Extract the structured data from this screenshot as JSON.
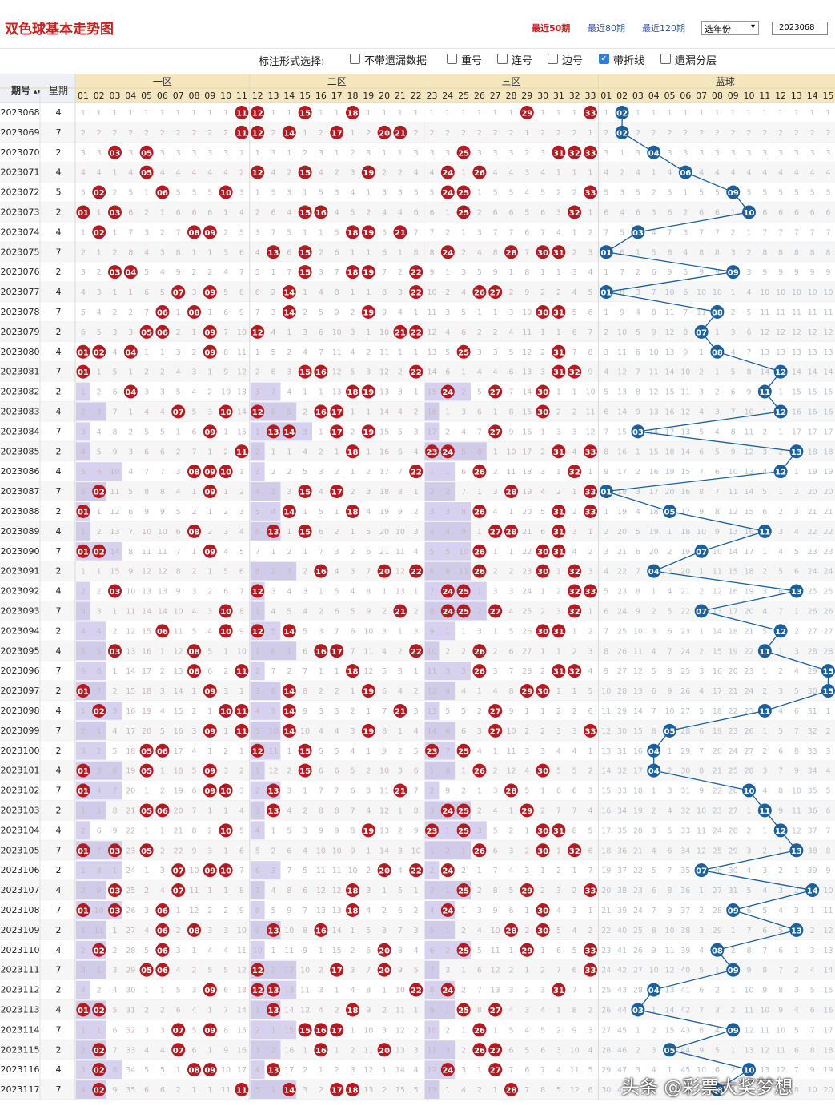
{
  "header": {
    "title": "双色球基本走势图",
    "period_links": [
      {
        "label": "最近50期",
        "active": true
      },
      {
        "label": "最近80期",
        "active": false
      },
      {
        "label": "最近120期",
        "active": false
      }
    ],
    "year_select": "选年份",
    "issue_input": "2023068"
  },
  "options": {
    "label": "标注形式选择:",
    "items": [
      {
        "label": "不带遗漏数据",
        "checked": false
      },
      {
        "label": "重号",
        "checked": false
      },
      {
        "label": "连号",
        "checked": false
      },
      {
        "label": "边号",
        "checked": false
      },
      {
        "label": "带折线",
        "checked": true
      },
      {
        "label": "遗漏分层",
        "checked": false
      }
    ]
  },
  "table": {
    "col_issue": "期号",
    "col_week": "星期",
    "zones": [
      "一区",
      "二区",
      "三区",
      "蓝球"
    ],
    "red_numbers": [
      "01",
      "02",
      "03",
      "04",
      "05",
      "06",
      "07",
      "08",
      "09",
      "10",
      "11",
      "12",
      "13",
      "14",
      "15",
      "16",
      "17",
      "18",
      "19",
      "20",
      "21",
      "22",
      "23",
      "24",
      "25",
      "26",
      "27",
      "28",
      "29",
      "30",
      "31",
      "32",
      "33"
    ],
    "blue_numbers": [
      "01",
      "02",
      "03",
      "04",
      "05",
      "06",
      "07",
      "08",
      "09",
      "10",
      "11",
      "12",
      "13",
      "14",
      "15"
    ],
    "colors": {
      "red_ball": "#b51a21",
      "blue_ball": "#1b5f9c",
      "header_bg": "#f4e7c0",
      "bar": "#8b7ad3"
    },
    "draws": [
      {
        "issue": "2023068",
        "week": "4",
        "red": [
          11,
          12,
          15,
          18,
          29,
          33
        ],
        "blue": 2
      },
      {
        "issue": "2023069",
        "week": "7",
        "red": [
          11,
          12,
          14,
          17,
          20,
          21
        ],
        "blue": 2
      },
      {
        "issue": "2023070",
        "week": "2",
        "red": [
          3,
          5,
          25,
          31,
          32,
          33
        ],
        "blue": 4
      },
      {
        "issue": "2023071",
        "week": "4",
        "red": [
          5,
          12,
          15,
          19,
          24,
          26
        ],
        "blue": 6
      },
      {
        "issue": "2023072",
        "week": "5",
        "red": [
          2,
          6,
          10,
          24,
          25,
          33
        ],
        "blue": 9
      },
      {
        "issue": "2023073",
        "week": "2",
        "red": [
          1,
          3,
          15,
          16,
          25,
          32
        ],
        "blue": 10
      },
      {
        "issue": "2023074",
        "week": "4",
        "red": [
          2,
          8,
          9,
          18,
          19,
          21
        ],
        "blue": 3
      },
      {
        "issue": "2023075",
        "week": "7",
        "red": [
          13,
          15,
          24,
          28,
          30,
          31
        ],
        "blue": 1
      },
      {
        "issue": "2023076",
        "week": "2",
        "red": [
          3,
          4,
          15,
          18,
          19,
          22
        ],
        "blue": 9
      },
      {
        "issue": "2023077",
        "week": "4",
        "red": [
          7,
          9,
          14,
          22,
          26,
          27
        ],
        "blue": 1
      },
      {
        "issue": "2023078",
        "week": "7",
        "red": [
          6,
          8,
          14,
          19,
          30,
          31
        ],
        "blue": 8
      },
      {
        "issue": "2023079",
        "week": "2",
        "red": [
          5,
          6,
          9,
          12,
          21,
          22
        ],
        "blue": 7
      },
      {
        "issue": "2023080",
        "week": "4",
        "red": [
          1,
          2,
          4,
          9,
          25,
          31
        ],
        "blue": 8
      },
      {
        "issue": "2023081",
        "week": "7",
        "red": [
          1,
          15,
          16,
          22,
          31,
          32
        ],
        "blue": 12
      },
      {
        "issue": "2023082",
        "week": "2",
        "red": [
          4,
          18,
          19,
          24,
          27,
          30
        ],
        "blue": 11
      },
      {
        "issue": "2023083",
        "week": "4",
        "red": [
          7,
          10,
          12,
          16,
          17,
          30
        ],
        "blue": 12
      },
      {
        "issue": "2023084",
        "week": "7",
        "red": [
          9,
          13,
          14,
          17,
          19,
          27
        ],
        "blue": 3
      },
      {
        "issue": "2023085",
        "week": "2",
        "red": [
          11,
          18,
          23,
          24,
          31,
          33
        ],
        "blue": 13
      },
      {
        "issue": "2023086",
        "week": "4",
        "red": [
          8,
          9,
          10,
          22,
          26,
          32
        ],
        "blue": 12
      },
      {
        "issue": "2023087",
        "week": "7",
        "red": [
          2,
          9,
          15,
          17,
          28,
          33
        ],
        "blue": 1
      },
      {
        "issue": "2023088",
        "week": "2",
        "red": [
          1,
          14,
          18,
          26,
          31,
          33
        ],
        "blue": 5
      },
      {
        "issue": "2023089",
        "week": "4",
        "red": [
          8,
          13,
          15,
          27,
          28,
          31
        ],
        "blue": 11
      },
      {
        "issue": "2023090",
        "week": "7",
        "red": [
          1,
          2,
          9,
          26,
          30,
          31
        ],
        "blue": 7
      },
      {
        "issue": "2023091",
        "week": "2",
        "red": [
          16,
          20,
          22,
          26,
          30,
          32
        ],
        "blue": 4
      },
      {
        "issue": "2023092",
        "week": "4",
        "red": [
          3,
          12,
          24,
          25,
          32,
          33
        ],
        "blue": 13
      },
      {
        "issue": "2023093",
        "week": "7",
        "red": [
          10,
          21,
          24,
          25,
          27,
          32
        ],
        "blue": 7
      },
      {
        "issue": "2023094",
        "week": "2",
        "red": [
          6,
          10,
          12,
          14,
          30,
          31
        ],
        "blue": 12
      },
      {
        "issue": "2023095",
        "week": "4",
        "red": [
          3,
          8,
          16,
          17,
          22,
          26
        ],
        "blue": 11
      },
      {
        "issue": "2023096",
        "week": "7",
        "red": [
          8,
          11,
          18,
          26,
          31,
          32
        ],
        "blue": 15
      },
      {
        "issue": "2023097",
        "week": "2",
        "red": [
          1,
          9,
          14,
          19,
          29,
          30
        ],
        "blue": 15
      },
      {
        "issue": "2023098",
        "week": "4",
        "red": [
          2,
          10,
          11,
          14,
          21,
          27
        ],
        "blue": 11
      },
      {
        "issue": "2023099",
        "week": "7",
        "red": [
          9,
          11,
          14,
          19,
          27,
          33
        ],
        "blue": 5
      },
      {
        "issue": "2023100",
        "week": "2",
        "red": [
          5,
          6,
          12,
          15,
          23,
          25
        ],
        "blue": 4
      },
      {
        "issue": "2023101",
        "week": "4",
        "red": [
          1,
          5,
          9,
          15,
          26,
          30
        ],
        "blue": 4
      },
      {
        "issue": "2023102",
        "week": "7",
        "red": [
          1,
          9,
          10,
          13,
          21,
          28
        ],
        "blue": 10
      },
      {
        "issue": "2023103",
        "week": "2",
        "red": [
          5,
          6,
          13,
          24,
          25,
          29
        ],
        "blue": 11
      },
      {
        "issue": "2023104",
        "week": "4",
        "red": [
          10,
          19,
          23,
          25,
          30,
          31
        ],
        "blue": 12
      },
      {
        "issue": "2023105",
        "week": "7",
        "red": [
          1,
          3,
          5,
          26,
          30,
          32
        ],
        "blue": 13
      },
      {
        "issue": "2023106",
        "week": "2",
        "red": [
          7,
          9,
          10,
          20,
          22,
          24
        ],
        "blue": 7
      },
      {
        "issue": "2023107",
        "week": "4",
        "red": [
          3,
          7,
          18,
          25,
          29,
          33
        ],
        "blue": 14
      },
      {
        "issue": "2023108",
        "week": "7",
        "red": [
          1,
          3,
          6,
          18,
          24,
          30
        ],
        "blue": 9
      },
      {
        "issue": "2023109",
        "week": "2",
        "red": [
          6,
          8,
          13,
          16,
          28,
          30
        ],
        "blue": 13
      },
      {
        "issue": "2023110",
        "week": "4",
        "red": [
          2,
          6,
          20,
          25,
          29,
          33
        ],
        "blue": 8
      },
      {
        "issue": "2023111",
        "week": "7",
        "red": [
          5,
          6,
          12,
          17,
          20,
          33
        ],
        "blue": 9
      },
      {
        "issue": "2023112",
        "week": "2",
        "red": [
          9,
          12,
          13,
          22,
          24,
          31
        ],
        "blue": 4
      },
      {
        "issue": "2023113",
        "week": "4",
        "red": [
          1,
          2,
          13,
          18,
          25,
          27
        ],
        "blue": 3
      },
      {
        "issue": "2023114",
        "week": "7",
        "red": [
          7,
          9,
          15,
          16,
          17,
          26
        ],
        "blue": 9
      },
      {
        "issue": "2023115",
        "week": "2",
        "red": [
          2,
          7,
          16,
          20,
          26,
          27
        ],
        "blue": 5
      },
      {
        "issue": "2023116",
        "week": "4",
        "red": [
          2,
          8,
          9,
          13,
          24,
          27
        ],
        "blue": 10
      },
      {
        "issue": "2023117",
        "week": "7",
        "red": [
          2,
          11,
          14,
          17,
          18,
          28
        ],
        "blue": 8
      }
    ]
  },
  "watermark": "头条 @彩票大奖梦想"
}
